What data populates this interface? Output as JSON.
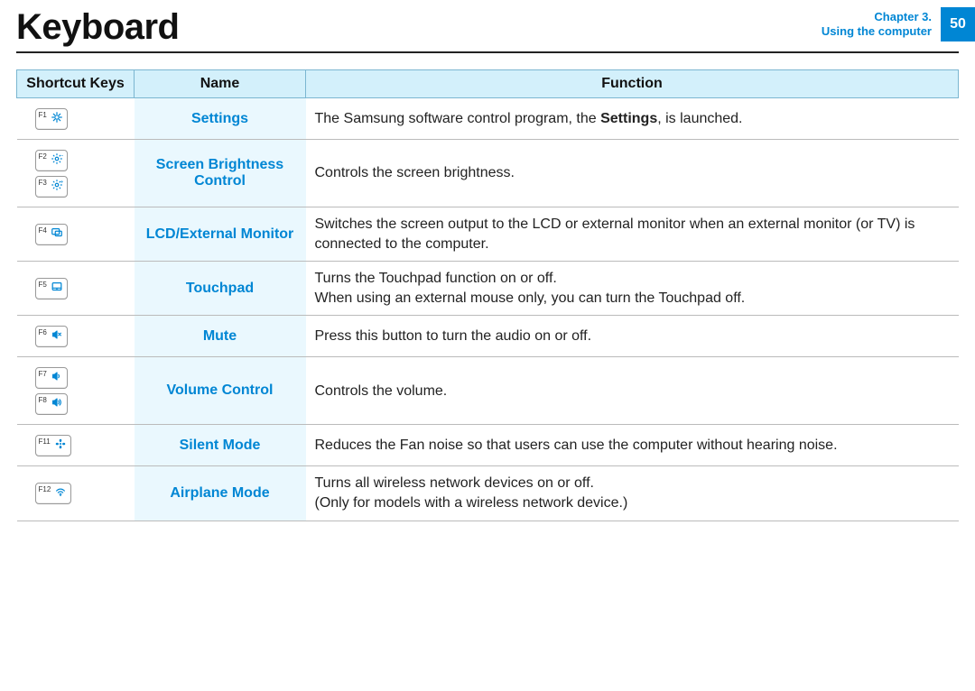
{
  "header": {
    "title": "Keyboard",
    "chapter_line1": "Chapter 3.",
    "chapter_line2": "Using the computer",
    "page_number": "50"
  },
  "table": {
    "columns": [
      "Shortcut Keys",
      "Name",
      "Function"
    ],
    "header_bg": "#d3f0fb",
    "header_border": "#7bb6d1",
    "name_col_bg": "#eaf8fe",
    "name_color": "#0086d4",
    "row_border": "#bbbbbb",
    "rows": [
      {
        "keys": [
          {
            "label": "F1",
            "icon": "gear"
          }
        ],
        "name": "Settings",
        "function_html": "The Samsung software control program, the <b>Settings</b>, is launched."
      },
      {
        "keys": [
          {
            "label": "F2",
            "icon": "bright-down"
          },
          {
            "label": "F3",
            "icon": "bright-up"
          }
        ],
        "name": "Screen Brightness Control",
        "function_html": "Controls the screen brightness."
      },
      {
        "keys": [
          {
            "label": "F4",
            "icon": "monitor"
          }
        ],
        "name": "LCD/External Monitor",
        "function_html": "Switches the screen output to the LCD or external monitor when an external monitor (or TV) is connected to the computer."
      },
      {
        "keys": [
          {
            "label": "F5",
            "icon": "touchpad"
          }
        ],
        "name": "Touchpad",
        "function_html": "Turns the Touchpad function on or off.<br>When using an external mouse only, you can turn the Touchpad off."
      },
      {
        "keys": [
          {
            "label": "F6",
            "icon": "mute"
          }
        ],
        "name": "Mute",
        "function_html": "Press this button to turn the audio on or off."
      },
      {
        "keys": [
          {
            "label": "F7",
            "icon": "vol-low"
          },
          {
            "label": "F8",
            "icon": "vol-high"
          }
        ],
        "name": "Volume Control",
        "function_html": "Controls the volume."
      },
      {
        "keys": [
          {
            "label": "F11",
            "icon": "fan"
          }
        ],
        "name": "Silent Mode",
        "function_html": "Reduces the Fan noise so that users can use the computer without hearing noise."
      },
      {
        "keys": [
          {
            "label": "F12",
            "icon": "wifi"
          }
        ],
        "name": "Airplane Mode",
        "function_html": "Turns all wireless network devices on or off.<br>(Only for models with a wireless network device.)"
      }
    ]
  },
  "icons": {
    "gear": "gear-icon",
    "bright-down": "brightness-down-icon",
    "bright-up": "brightness-up-icon",
    "monitor": "monitor-icon",
    "touchpad": "touchpad-icon",
    "mute": "mute-icon",
    "vol-low": "volume-low-icon",
    "vol-high": "volume-high-icon",
    "fan": "fan-icon",
    "wifi": "wifi-icon"
  }
}
